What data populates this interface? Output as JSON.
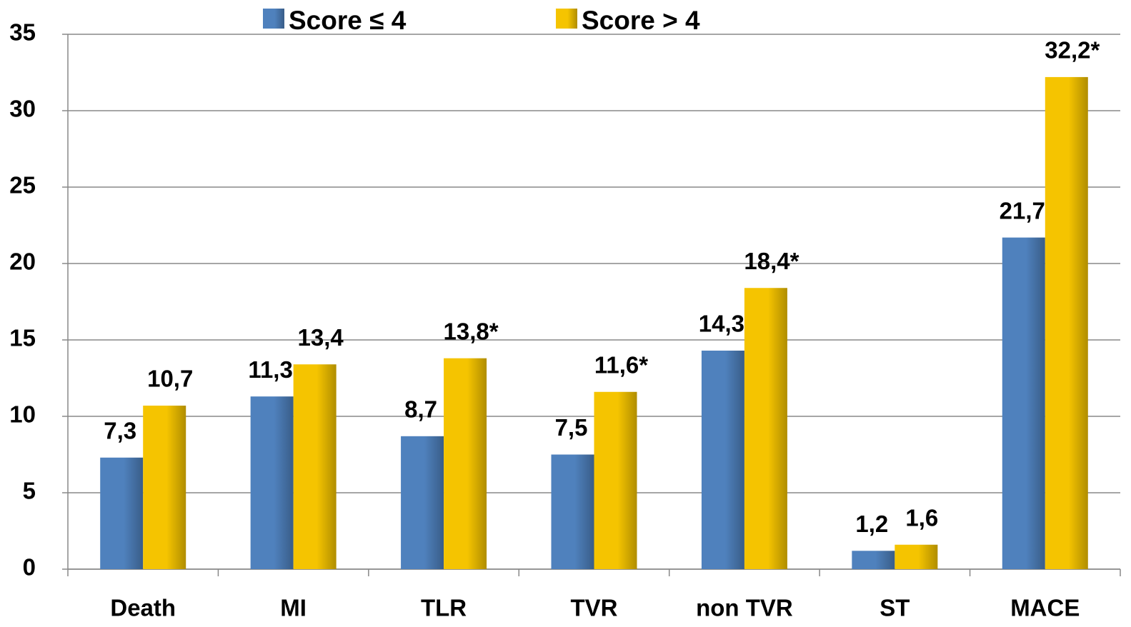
{
  "chart_data": {
    "type": "bar",
    "categories": [
      "Death",
      "MI",
      "TLR",
      "TVR",
      "non TVR",
      "ST",
      "MACE"
    ],
    "series": [
      {
        "name": "Score ≤ 4",
        "color": "#4f81bd",
        "values": [
          7.3,
          11.3,
          8.7,
          7.5,
          14.3,
          1.2,
          21.7
        ],
        "value_labels": [
          "7,3",
          "11,3",
          "8,7",
          "7,5",
          "14,3",
          "1,2",
          "21,7"
        ]
      },
      {
        "name": "Score > 4",
        "color": "#f5c400",
        "values": [
          10.7,
          13.4,
          13.8,
          11.6,
          18.4,
          1.6,
          32.2
        ],
        "value_labels": [
          "10,7",
          "13,4",
          "13,8*",
          "11,6*",
          "18,4*",
          "1,6",
          "32,2*"
        ]
      }
    ],
    "ylim": [
      0,
      35
    ],
    "yticks": [
      0,
      5,
      10,
      15,
      20,
      25,
      30,
      35
    ],
    "grid": true,
    "legend": "top"
  }
}
